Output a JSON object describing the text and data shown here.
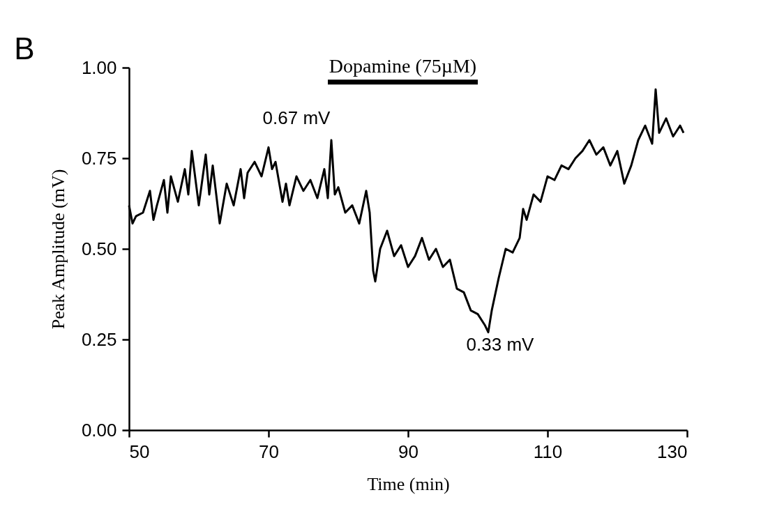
{
  "chart_data": {
    "type": "line",
    "xlabel": "Time (min)",
    "ylabel": "Peak Amplitude (mV)",
    "x": [
      50,
      50.5,
      51,
      52,
      53,
      53.5,
      54,
      55,
      55.5,
      56,
      57,
      58,
      58.5,
      59,
      60,
      61,
      61.5,
      62,
      63,
      64,
      65,
      66,
      66.5,
      67,
      68,
      69,
      70,
      70.5,
      71,
      72,
      72.5,
      73,
      74,
      75,
      76,
      77,
      78,
      78.5,
      79,
      79.5,
      80,
      81,
      82,
      83,
      84,
      84.5,
      85,
      85.3,
      86,
      87,
      88,
      89,
      90,
      91,
      92,
      93,
      94,
      95,
      96,
      97,
      98,
      99,
      100,
      101,
      101.5,
      102,
      103,
      104,
      105,
      106,
      106.5,
      107,
      108,
      109,
      110,
      111,
      112,
      113,
      114,
      115,
      116,
      117,
      118,
      119,
      120,
      121,
      122,
      123,
      124,
      125,
      125.5,
      126,
      127,
      128,
      129,
      129.5
    ],
    "series": [
      {
        "color": "#000000",
        "values": [
          0.62,
          0.57,
          0.59,
          0.6,
          0.66,
          0.58,
          0.62,
          0.69,
          0.6,
          0.7,
          0.63,
          0.72,
          0.65,
          0.77,
          0.62,
          0.76,
          0.65,
          0.73,
          0.57,
          0.68,
          0.62,
          0.72,
          0.64,
          0.71,
          0.74,
          0.7,
          0.78,
          0.72,
          0.74,
          0.63,
          0.68,
          0.62,
          0.7,
          0.66,
          0.69,
          0.64,
          0.72,
          0.64,
          0.8,
          0.65,
          0.67,
          0.6,
          0.62,
          0.57,
          0.66,
          0.6,
          0.44,
          0.41,
          0.5,
          0.55,
          0.48,
          0.51,
          0.45,
          0.48,
          0.53,
          0.47,
          0.5,
          0.45,
          0.47,
          0.39,
          0.38,
          0.33,
          0.32,
          0.29,
          0.27,
          0.33,
          0.42,
          0.5,
          0.49,
          0.53,
          0.61,
          0.58,
          0.65,
          0.63,
          0.7,
          0.69,
          0.73,
          0.72,
          0.75,
          0.77,
          0.8,
          0.76,
          0.78,
          0.73,
          0.77,
          0.68,
          0.73,
          0.8,
          0.84,
          0.79,
          0.94,
          0.82,
          0.86,
          0.81,
          0.84,
          0.82
        ]
      },
      {
        "name": "Dopamine (75µM)",
        "color": "#000000",
        "x": [
          78.5,
          100
        ],
        "values": [
          0.96,
          0.96
        ]
      }
    ],
    "xlim": [
      50,
      130
    ],
    "xticks": [
      50,
      70,
      90,
      110,
      130
    ],
    "ylim": [
      0,
      1
    ],
    "yticks": [
      {
        "value": 0,
        "label": "0.00"
      },
      {
        "value": 0.25,
        "label": "0.25"
      },
      {
        "value": 0.5,
        "label": "0.50"
      },
      {
        "value": 0.75,
        "label": "0.75"
      },
      {
        "value": 1,
        "label": "1.00"
      }
    ],
    "annotations": [
      "B",
      "0.67 mV",
      "0.33 mV"
    ],
    "grid": false,
    "marker": "none",
    "line_style": "solid"
  }
}
